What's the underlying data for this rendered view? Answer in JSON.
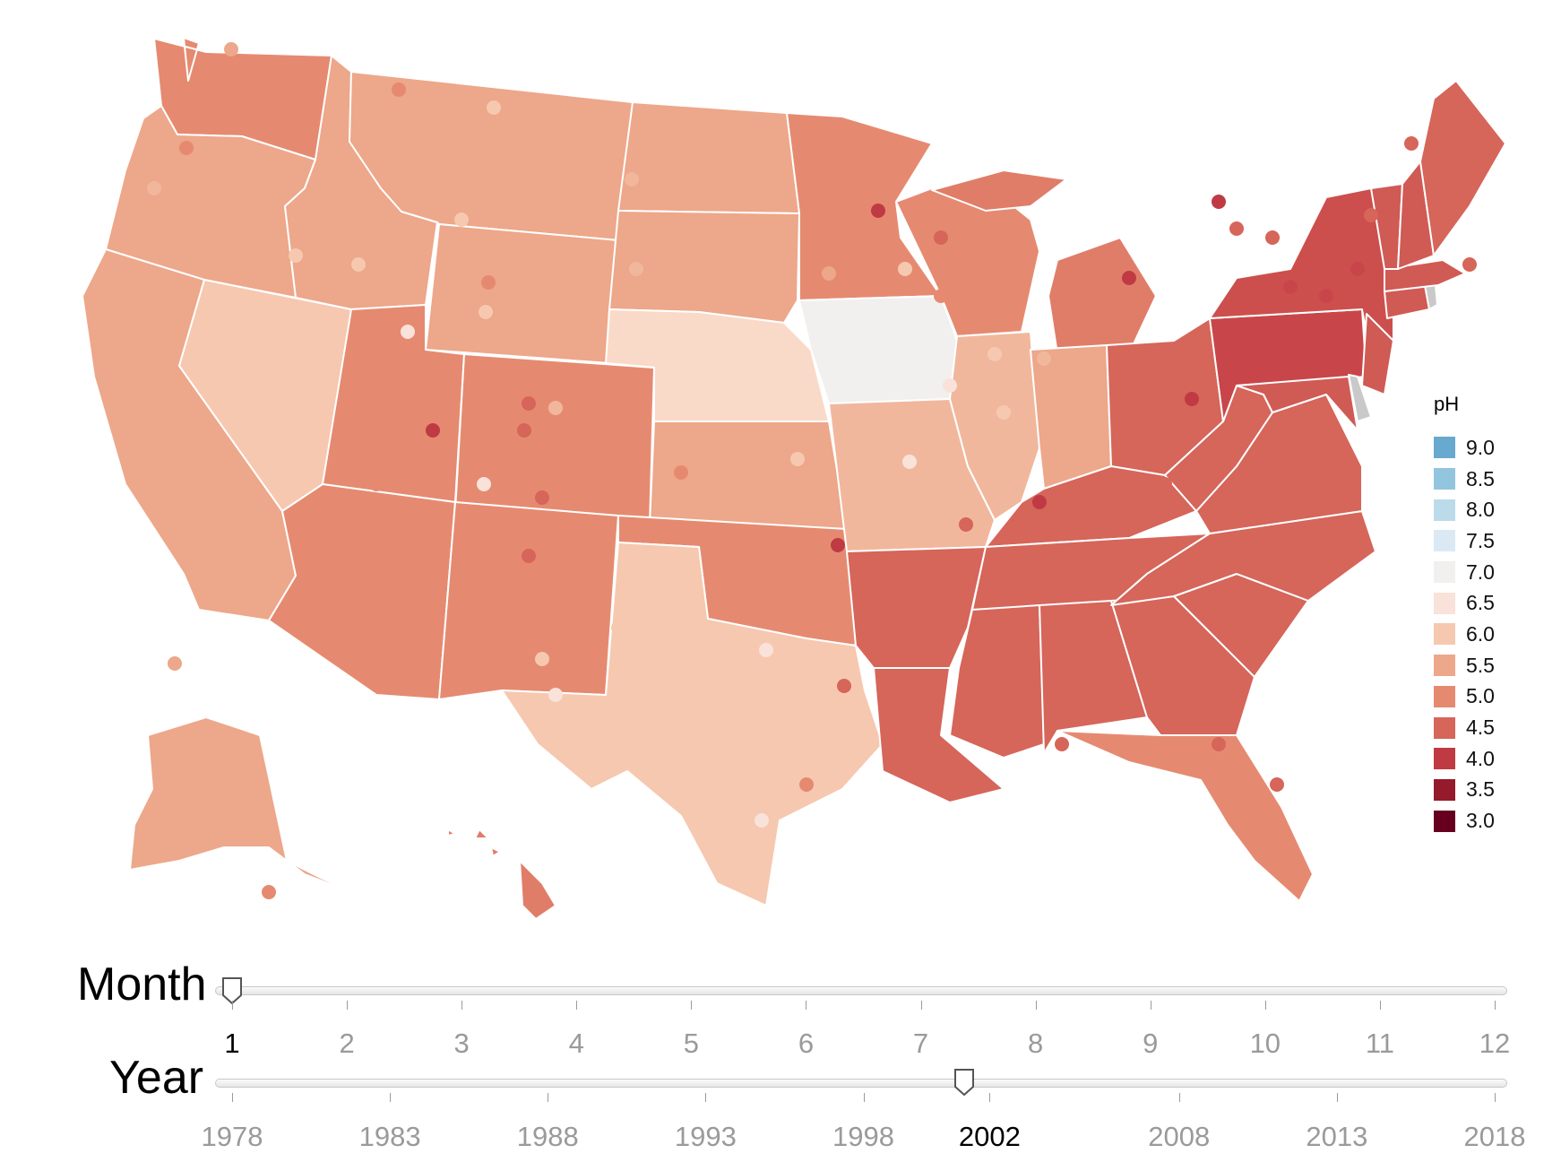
{
  "legend": {
    "title": "pH",
    "items": [
      {
        "label": "9.0",
        "color": "#67a9cf"
      },
      {
        "label": "8.5",
        "color": "#92c5de"
      },
      {
        "label": "8.0",
        "color": "#bcdbea"
      },
      {
        "label": "7.5",
        "color": "#dbe9f4"
      },
      {
        "label": "7.0",
        "color": "#f1f0ef"
      },
      {
        "label": "6.5",
        "color": "#f9e2d9"
      },
      {
        "label": "6.0",
        "color": "#f6c8b0"
      },
      {
        "label": "5.5",
        "color": "#eda78a"
      },
      {
        "label": "5.0",
        "color": "#e58a70"
      },
      {
        "label": "4.5",
        "color": "#d6655a"
      },
      {
        "label": "4.0",
        "color": "#c03a43"
      },
      {
        "label": "3.5",
        "color": "#951a2c"
      },
      {
        "label": "3.0",
        "color": "#67001f"
      }
    ]
  },
  "no_data_color": "#c9c9c9",
  "states": [
    {
      "name": "Washington",
      "color": "#e58a70"
    },
    {
      "name": "Oregon",
      "color": "#eda78a"
    },
    {
      "name": "California",
      "color": "#eda78a"
    },
    {
      "name": "Nevada",
      "color": "#f6c8b0"
    },
    {
      "name": "Idaho",
      "color": "#eda78a"
    },
    {
      "name": "Montana",
      "color": "#eda78a"
    },
    {
      "name": "Wyoming",
      "color": "#eda78a"
    },
    {
      "name": "Utah",
      "color": "#e58a70"
    },
    {
      "name": "Colorado",
      "color": "#e58a70"
    },
    {
      "name": "Arizona",
      "color": "#e58a70"
    },
    {
      "name": "New Mexico",
      "color": "#e58a70"
    },
    {
      "name": "North Dakota",
      "color": "#eda78a"
    },
    {
      "name": "South Dakota",
      "color": "#eda78a"
    },
    {
      "name": "Nebraska",
      "color": "#f9dac9"
    },
    {
      "name": "Kansas",
      "color": "#eda78a"
    },
    {
      "name": "Oklahoma",
      "color": "#e58a70"
    },
    {
      "name": "Texas",
      "color": "#f6c8b0"
    },
    {
      "name": "Minnesota",
      "color": "#e58a70"
    },
    {
      "name": "Iowa",
      "color": "#f1f0ef"
    },
    {
      "name": "Missouri",
      "color": "#f1b79c"
    },
    {
      "name": "Arkansas",
      "color": "#d6655a"
    },
    {
      "name": "Louisiana",
      "color": "#d6655a"
    },
    {
      "name": "Wisconsin",
      "color": "#e58a70"
    },
    {
      "name": "Illinois",
      "color": "#f1b79c"
    },
    {
      "name": "Michigan",
      "color": "#e07d68"
    },
    {
      "name": "Indiana",
      "color": "#eda78a"
    },
    {
      "name": "Ohio",
      "color": "#d6655a"
    },
    {
      "name": "Kentucky",
      "color": "#d6655a"
    },
    {
      "name": "Tennessee",
      "color": "#d6655a"
    },
    {
      "name": "Mississippi",
      "color": "#d6655a"
    },
    {
      "name": "Alabama",
      "color": "#d6655a"
    },
    {
      "name": "Georgia",
      "color": "#d6655a"
    },
    {
      "name": "Florida",
      "color": "#e58a70"
    },
    {
      "name": "South Carolina",
      "color": "#d6655a"
    },
    {
      "name": "North Carolina",
      "color": "#d6655a"
    },
    {
      "name": "Virginia",
      "color": "#d6655a"
    },
    {
      "name": "West Virginia",
      "color": "#d6655a"
    },
    {
      "name": "Pennsylvania",
      "color": "#c84649"
    },
    {
      "name": "New York",
      "color": "#cc4f4d"
    },
    {
      "name": "Maryland",
      "color": "#d05a54"
    },
    {
      "name": "Delaware",
      "color": "#c9c9c9"
    },
    {
      "name": "New Jersey",
      "color": "#d05a54"
    },
    {
      "name": "Connecticut",
      "color": "#d05a54"
    },
    {
      "name": "Rhode Island",
      "color": "#c9c9c9"
    },
    {
      "name": "Massachusetts",
      "color": "#d05a54"
    },
    {
      "name": "Vermont",
      "color": "#d05a54"
    },
    {
      "name": "New Hampshire",
      "color": "#d05a54"
    },
    {
      "name": "Maine",
      "color": "#d6655a"
    },
    {
      "name": "Alaska",
      "color": "#eda78a"
    },
    {
      "name": "Hawaii",
      "color": "#e07d68"
    }
  ],
  "month_slider": {
    "label": "Month",
    "ticks": [
      "1",
      "2",
      "3",
      "4",
      "5",
      "6",
      "7",
      "8",
      "9",
      "10",
      "11",
      "12"
    ],
    "selected": "1"
  },
  "year_slider": {
    "label": "Year",
    "ticks": [
      "1978",
      "1983",
      "1988",
      "1993",
      "1998",
      "2002",
      "2008",
      "2013",
      "2018"
    ],
    "selected": "2002",
    "selected_value": 2002
  }
}
